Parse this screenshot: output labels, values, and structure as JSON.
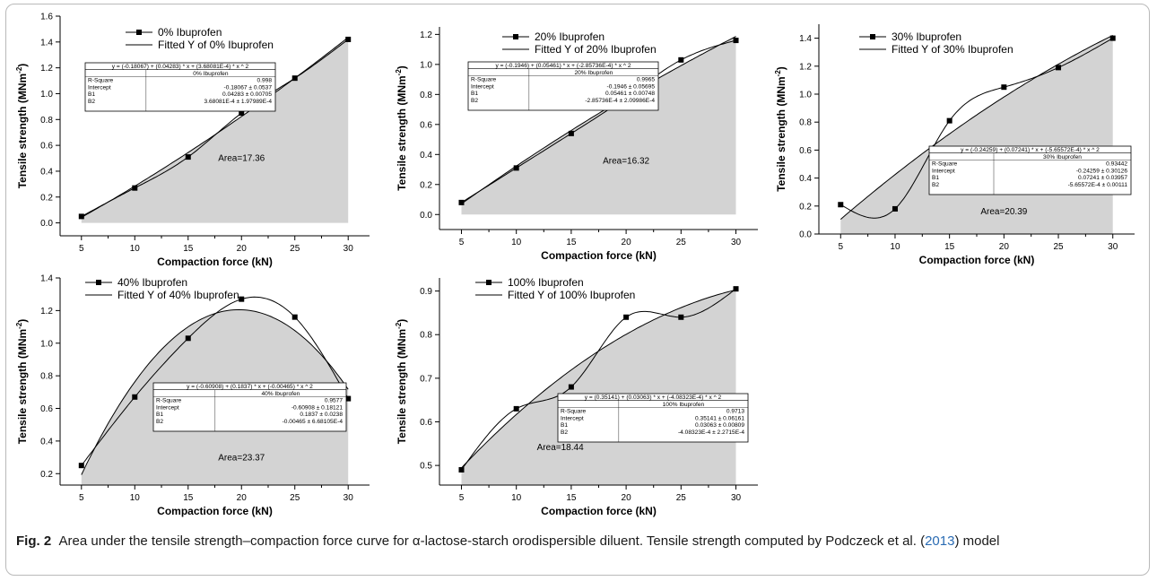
{
  "caption": {
    "label": "Fig. 2",
    "text_before_cite": "Area under the tensile strength–compaction force curve for α-lactose-starch orodispersible diluent. Tensile strength computed by Podczeck et al. (",
    "cite": "2013",
    "text_after_cite": ") model"
  },
  "colors": {
    "area_fill": "#d3d3d3",
    "line": "#000000",
    "frame": "#b9b9b9",
    "cite": "#2a6bb3"
  },
  "chart_data": [
    {
      "type": "line",
      "xlabel": "Compaction force (kN)",
      "ylabel": "Tensile strength (MNm",
      "ylabel_sup": "-2",
      "ylabel_end": ")",
      "x_ticks": [
        5,
        10,
        15,
        20,
        25,
        30
      ],
      "y_ticks": [
        "0.0",
        "0.2",
        "0.4",
        "0.6",
        "0.8",
        "1.0",
        "1.2",
        "1.4",
        "1.6"
      ],
      "xlim": [
        3,
        32
      ],
      "ylim": [
        -0.1,
        1.6
      ],
      "series": [
        {
          "name": "0% Ibuprofen",
          "kind": "data",
          "x": [
            5,
            10,
            15,
            20,
            25,
            30
          ],
          "y": [
            0.05,
            0.27,
            0.51,
            0.85,
            1.12,
            1.42
          ]
        },
        {
          "name": "Fitted Y of 0% Ibuprofen",
          "kind": "fit",
          "coef": [
            -0.18067,
            0.04283,
            0.000368081
          ]
        }
      ],
      "area_label": "Area=17.36",
      "area_label_at": [
        20,
        0.48
      ],
      "legend": "top-center",
      "fit_box": {
        "equation": "y = (-0.18067) + (0.04283) * x + (3.68081E-4) * x ^ 2",
        "header": "0% Ibuprofen",
        "rows": [
          [
            "R-Square",
            "0.998"
          ],
          [
            "Intercept",
            "-0.18067 ± 0.0537"
          ],
          [
            "B1",
            "0.04283 ± 0.00705"
          ],
          [
            "B2",
            "3.68081E-4 ± 1.97989E-4"
          ]
        ]
      }
    },
    {
      "type": "line",
      "xlabel": "Compaction force (kN)",
      "ylabel": "Tensile strength (MNm",
      "ylabel_sup": "-2",
      "ylabel_end": ")",
      "x_ticks": [
        5,
        10,
        15,
        20,
        25,
        30
      ],
      "y_ticks": [
        "0.0",
        "0.2",
        "0.4",
        "0.6",
        "0.8",
        "1.0",
        "1.2"
      ],
      "xlim": [
        3,
        32
      ],
      "ylim": [
        -0.1,
        1.25
      ],
      "series": [
        {
          "name": "20% Ibuprofen",
          "kind": "data",
          "x": [
            5,
            10,
            15,
            20,
            25,
            30
          ],
          "y": [
            0.08,
            0.31,
            0.54,
            0.78,
            1.03,
            1.16
          ]
        },
        {
          "name": "Fitted Y of 20% Ibuprofen",
          "kind": "fit",
          "coef": [
            -0.1946,
            0.05461,
            -0.000285736
          ]
        }
      ],
      "area_label": "Area=16.32",
      "area_label_at": [
        20,
        0.34
      ],
      "legend": "top-center",
      "fit_box": {
        "equation": "y = (-0.1946) + (0.05461) * x + (-2.85736E-4) * x ^ 2",
        "header": "20% Ibuprofen",
        "rows": [
          [
            "R-Square",
            "0.9965"
          ],
          [
            "Intercept",
            "-0.1946 ± 0.05695"
          ],
          [
            "B1",
            "0.05461 ± 0.00748"
          ],
          [
            "B2",
            "-2.85736E-4 ± 2.09986E-4"
          ]
        ]
      }
    },
    {
      "type": "line",
      "xlabel": "Compaction force (kN)",
      "ylabel": "Tensile strength (MNm",
      "ylabel_sup": "-2",
      "ylabel_end": ")",
      "x_ticks": [
        5,
        10,
        15,
        20,
        25,
        30
      ],
      "y_ticks": [
        "0.0",
        "0.2",
        "0.4",
        "0.6",
        "0.8",
        "1.0",
        "1.2",
        "1.4"
      ],
      "xlim": [
        3,
        32
      ],
      "ylim": [
        0,
        1.5
      ],
      "series": [
        {
          "name": "30% Ibuprofen",
          "kind": "data",
          "x": [
            5,
            10,
            15,
            20,
            25,
            30
          ],
          "y": [
            0.21,
            0.18,
            0.81,
            1.05,
            1.19,
            1.4
          ]
        },
        {
          "name": "Fitted Y of 30% Ibuprofen",
          "kind": "fit",
          "coef": [
            -0.24259,
            0.07241,
            -0.000565572
          ]
        }
      ],
      "area_label": "Area=20.39",
      "area_label_at": [
        20,
        0.14
      ],
      "legend": "top-center",
      "fit_box": {
        "equation": "y = (-0.24259) + (0.07241) * x + (-5.65572E-4) * x ^ 2",
        "header": "30% Ibuprofen",
        "rows": [
          [
            "R-Square",
            "0.93442"
          ],
          [
            "Intercept",
            "-0.24259 ± 0.30126"
          ],
          [
            "B1",
            "0.07241 ± 0.03957"
          ],
          [
            "B2",
            "-5.65572E-4 ± 0.00111"
          ]
        ]
      }
    },
    {
      "type": "line",
      "xlabel": "Compaction force (kN)",
      "ylabel": "Tensile strength (MNm",
      "ylabel_sup": "-2",
      "ylabel_end": ")",
      "x_ticks": [
        5,
        10,
        15,
        20,
        25,
        30
      ],
      "y_ticks": [
        "0.2",
        "0.4",
        "0.6",
        "0.8",
        "1.0",
        "1.2",
        "1.4"
      ],
      "xlim": [
        3,
        32
      ],
      "ylim": [
        0.13,
        1.4
      ],
      "series": [
        {
          "name": "40% Ibuprofen",
          "kind": "data",
          "x": [
            5,
            10,
            15,
            20,
            25,
            30
          ],
          "y": [
            0.25,
            0.67,
            1.03,
            1.27,
            1.16,
            0.66
          ]
        },
        {
          "name": "Fitted Y of 40% Ibuprofen",
          "kind": "fit",
          "coef": [
            -0.60908,
            0.1837,
            -0.00465
          ]
        }
      ],
      "area_label": "Area=23.37",
      "area_label_at": [
        20,
        0.28
      ],
      "legend": "top-center",
      "fit_box": {
        "equation": "y = (-0.60908) + (0.1837) * x + (-0.00465) * x ^ 2",
        "header": "40% Ibuprofen",
        "rows": [
          [
            "R-Square",
            "0.9577"
          ],
          [
            "Intercept",
            "-0.60908 ± 0.18121"
          ],
          [
            "B1",
            "0.1837 ± 0.0238"
          ],
          [
            "B2",
            "-0.00465 ± 6.68105E-4"
          ]
        ]
      }
    },
    {
      "type": "line",
      "xlabel": "Compaction force (kN)",
      "ylabel": "Tensile strength (MNm",
      "ylabel_sup": "-2",
      "ylabel_end": ")",
      "x_ticks": [
        5,
        10,
        15,
        20,
        25,
        30
      ],
      "y_ticks": [
        "0.5",
        "0.6",
        "0.7",
        "0.8",
        "0.9"
      ],
      "xlim": [
        3,
        32
      ],
      "ylim": [
        0.455,
        0.93
      ],
      "series": [
        {
          "name": "100% Ibuprofen",
          "kind": "data",
          "x": [
            5,
            10,
            15,
            20,
            25,
            30
          ],
          "y": [
            0.49,
            0.63,
            0.68,
            0.84,
            0.84,
            0.905
          ]
        },
        {
          "name": "Fitted Y of 100% Ibuprofen",
          "kind": "fit",
          "coef": [
            0.35141,
            0.03063,
            -0.000408323
          ]
        }
      ],
      "area_label": "Area=18.44",
      "area_label_at": [
        14,
        0.535
      ],
      "legend": "top-center",
      "fit_box": {
        "equation": "y = (0.35141) + (0.03063) * x + (-4.08323E-4) * x ^ 2",
        "header": "100% Ibuprofen",
        "rows": [
          [
            "R-Square",
            "0.9713"
          ],
          [
            "Intercept",
            "0.35141 ± 0.06161"
          ],
          [
            "B1",
            "0.03063 ± 0.00809"
          ],
          [
            "B2",
            "-4.08323E-4 ± 2.2715E-4"
          ]
        ]
      }
    }
  ]
}
